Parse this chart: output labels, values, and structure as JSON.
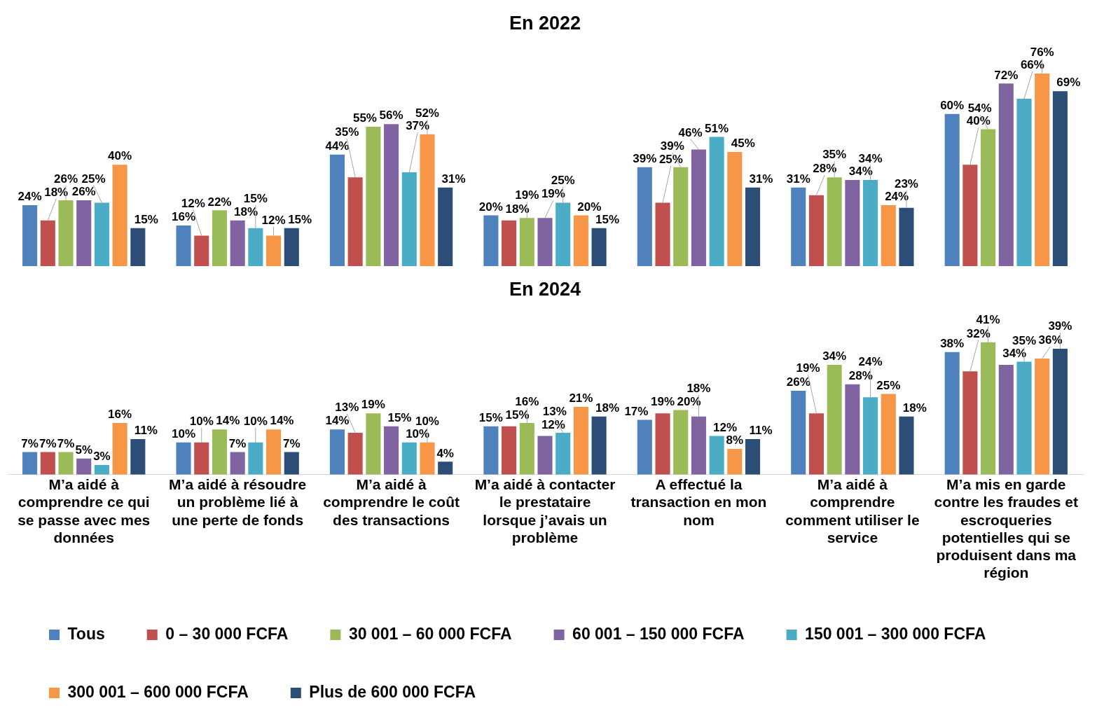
{
  "chart_data": [
    {
      "type": "bar",
      "title": "En 2022",
      "categories": [
        null,
        null,
        null,
        null,
        null,
        null,
        null
      ],
      "tick_labels": false,
      "legend": false,
      "grid": false,
      "series": [
        {
          "color": "#4f81bd",
          "values": [
            24,
            16,
            44,
            20,
            39,
            31,
            60
          ],
          "value_labels": [
            "24%",
            "16%",
            "44%",
            "20%",
            "39%",
            "31%",
            "60%"
          ]
        },
        {
          "color": "#c0504d",
          "values": [
            18,
            12,
            35,
            18,
            25,
            28,
            40
          ],
          "value_labels": [
            "18%",
            "12%",
            "35%",
            "18%",
            "25%",
            "28%",
            "40%"
          ]
        },
        {
          "color": "#9bbb59",
          "values": [
            26,
            22,
            55,
            19,
            39,
            35,
            54
          ],
          "value_labels": [
            "26%",
            "22%",
            "55%",
            "19%",
            "39%",
            "35%",
            "54%"
          ]
        },
        {
          "color": "#8064a2",
          "values": [
            26,
            18,
            56,
            19,
            46,
            34,
            72
          ],
          "value_labels": [
            "26%",
            "18%",
            "56%",
            "19%",
            "46%",
            "34%",
            "72%"
          ]
        },
        {
          "color": "#4bacc6",
          "values": [
            25,
            15,
            37,
            25,
            51,
            34,
            66
          ],
          "value_labels": [
            "25%",
            "15%",
            "37%",
            "25%",
            "51%",
            "34%",
            "66%"
          ]
        },
        {
          "color": "#f79646",
          "values": [
            40,
            12,
            52,
            20,
            45,
            24,
            76
          ],
          "value_labels": [
            "40%",
            "12%",
            "52%",
            "20%",
            "45%",
            "24%",
            "76%"
          ]
        },
        {
          "color": "#2c4d75",
          "values": [
            15,
            15,
            31,
            15,
            31,
            23,
            69
          ],
          "value_labels": [
            "15%",
            "15%",
            "31%",
            "15%",
            "31%",
            "23%",
            "69%"
          ]
        }
      ]
    },
    {
      "type": "bar",
      "title": "En 2024",
      "categories": [
        "M’a aidé à comprendre ce qui se passe avec mes données",
        "M’a aidé à résoudre un problème lié à une perte de fonds",
        "M’a aidé à comprendre le coût des transactions",
        "M’a aidé à contacter le prestataire lorsque j’avais un problème",
        "A effectué la transaction en mon nom",
        "M’a aidé à comprendre comment utiliser le service",
        "M’a mis en garde contre les fraudes et escroqueries potentielles qui se produisent dans ma région"
      ],
      "tick_labels": "x",
      "legend": "bottom",
      "grid": false,
      "series": [
        {
          "name": "Tous",
          "color": "#4f81bd",
          "values": [
            7,
            10,
            14,
            15,
            17,
            26,
            38
          ],
          "value_labels": [
            "7%",
            "10%",
            "14%",
            "15%",
            "17%",
            "26%",
            "38%"
          ]
        },
        {
          "name": "0 – 30 000 FCFA",
          "color": "#c0504d",
          "values": [
            7,
            10,
            13,
            15,
            19,
            19,
            32
          ],
          "value_labels": [
            "7%",
            "10%",
            "13%",
            "15%",
            "19%",
            "19%",
            "32%"
          ]
        },
        {
          "name": "30 001 – 60 000 FCFA",
          "color": "#9bbb59",
          "values": [
            7,
            14,
            19,
            16,
            20,
            34,
            41
          ],
          "value_labels": [
            "7%",
            "14%",
            "19%",
            "16%",
            "20%",
            "34%",
            "41%"
          ]
        },
        {
          "name": "60 001 – 150 000 FCFA",
          "color": "#8064a2",
          "values": [
            5,
            7,
            15,
            12,
            18,
            28,
            34
          ],
          "value_labels": [
            "5%",
            "7%",
            "15%",
            "12%",
            "18%",
            "28%",
            "34%"
          ]
        },
        {
          "name": "150 001 – 300 000 FCFA",
          "color": "#4bacc6",
          "values": [
            3,
            10,
            10,
            13,
            12,
            24,
            35
          ],
          "value_labels": [
            "3%",
            "10%",
            "10%",
            "13%",
            "12%",
            "24%",
            "35%"
          ]
        },
        {
          "name": "300 001 – 600 000 FCFA",
          "color": "#f79646",
          "values": [
            16,
            14,
            10,
            21,
            8,
            25,
            36
          ],
          "value_labels": [
            "16%",
            "14%",
            "10%",
            "21%",
            "8%",
            "25%",
            "36%"
          ]
        },
        {
          "name": "Plus de 600 000 FCFA",
          "color": "#2c4d75",
          "values": [
            11,
            7,
            4,
            18,
            11,
            18,
            39
          ],
          "value_labels": [
            "11%",
            "7%",
            "4%",
            "18%",
            "11%",
            "18%",
            "39%"
          ]
        }
      ]
    }
  ]
}
